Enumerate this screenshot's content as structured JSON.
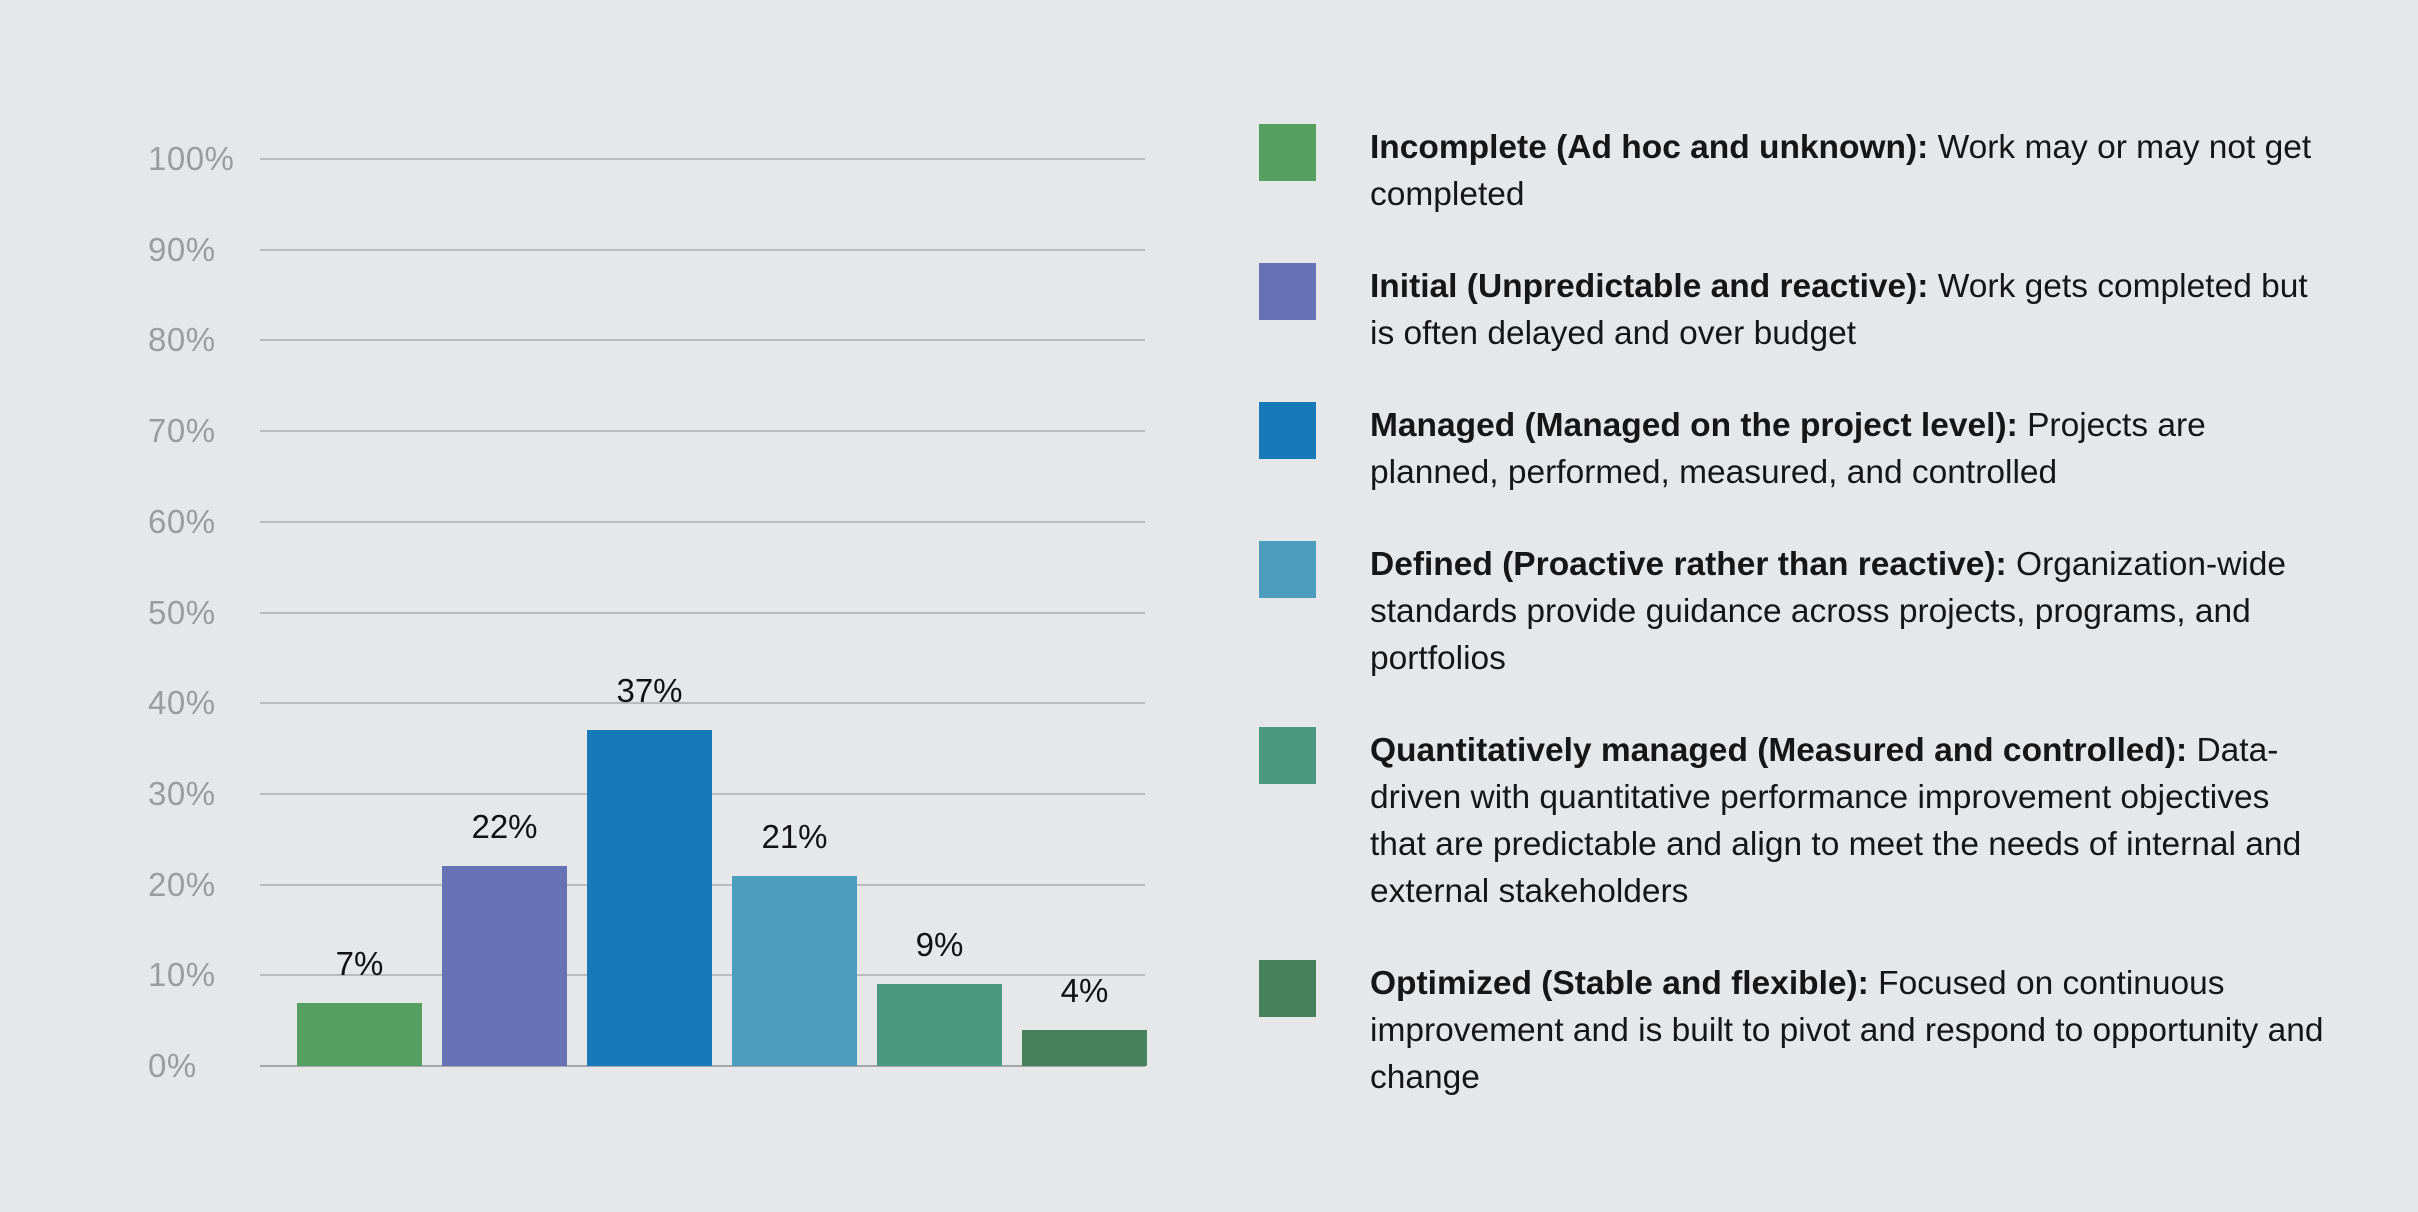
{
  "page": {
    "background": "#e6e7e9"
  },
  "chart_data": {
    "type": "bar",
    "title": "",
    "categories": [
      "Incomplete (Ad hoc and unknown)",
      "Initial (Unpredictable and reactive)",
      "Managed (Managed on the project level)",
      "Defined (Proactive rather than reactive)",
      "Quantitatively managed (Measured and controlled)",
      "Optimized (Stable and flexible)"
    ],
    "values": [
      7,
      22,
      37,
      21,
      9,
      4
    ],
    "value_labels": [
      "7%",
      "22%",
      "37%",
      "21%",
      "9%",
      "4%"
    ],
    "bar_colors": [
      "#55a061",
      "#6772b5",
      "#1779b7",
      "#4b9cbd",
      "#4b9a7f",
      "#45815a"
    ],
    "xlabel": "",
    "ylabel": "",
    "ylim": [
      0,
      100
    ],
    "yticks": [
      0,
      10,
      20,
      30,
      40,
      50,
      60,
      70,
      80,
      90,
      100
    ],
    "ytick_labels": [
      "0%",
      "10%",
      "20%",
      "30%",
      "40%",
      "50%",
      "60%",
      "70%",
      "80%",
      "90%",
      "100%"
    ],
    "grid": true,
    "gridline_color": "#b9babd",
    "axis_label_color": "#9b9ca0",
    "legend_position": "right"
  },
  "legend": {
    "items": [
      {
        "color": "#55a061",
        "title": "Incomplete (Ad hoc and unknown):",
        "description": "Work may or may not get completed"
      },
      {
        "color": "#6772b5",
        "title": "Initial (Unpredictable and reactive):",
        "description": "Work gets completed but is often delayed and over budget"
      },
      {
        "color": "#1779b7",
        "title": "Managed (Managed on the project level):",
        "description": "Projects are planned, performed, measured, and controlled"
      },
      {
        "color": "#4b9cbd",
        "title": "Defined (Proactive rather than reactive):",
        "description": "Organization-wide standards provide guidance across projects, programs, and portfolios"
      },
      {
        "color": "#4b9a7f",
        "title": "Quantitatively managed (Measured and controlled):",
        "description": "Data-driven with quantitative performance improvement objectives that are predictable and align to meet the needs of internal and external stakeholders"
      },
      {
        "color": "#45815a",
        "title": "Optimized (Stable and flexible):",
        "description": "Focused on continuous improvement and is built to pivot and respond to opportunity and change"
      }
    ]
  }
}
